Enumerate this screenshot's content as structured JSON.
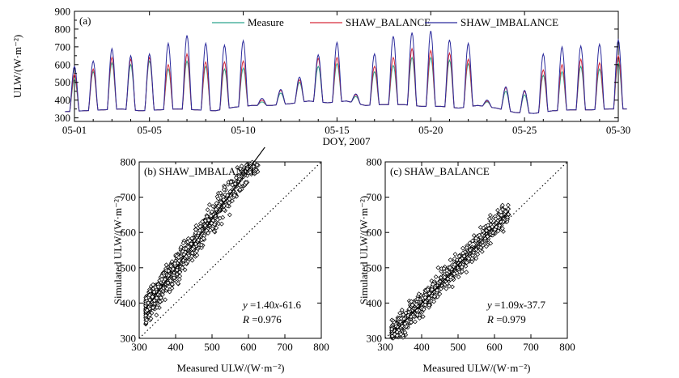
{
  "chart_data": [
    {
      "id": "a",
      "type": "line",
      "panel_label": "(a)",
      "xlabel": "DOY, 2007",
      "ylabel": "ULW/(W·m⁻²)",
      "x_ticklabels": [
        "05-01",
        "05-05",
        "05-10",
        "05-15",
        "05-20",
        "05-25",
        "05-30"
      ],
      "x_tick_days": [
        1,
        5,
        10,
        15,
        20,
        25,
        30
      ],
      "xlim": [
        1,
        30
      ],
      "ylim": [
        280,
        900
      ],
      "y_ticks": [
        300,
        400,
        500,
        600,
        700,
        800,
        900
      ],
      "legend_position": "top-right",
      "daily_data_columns": [
        "day",
        "night_min",
        "Measure_peak",
        "SHAW_BALANCE_peak",
        "SHAW_IMBALANCE_peak"
      ],
      "daily_values": [
        [
          1,
          335,
          520,
          545,
          590
        ],
        [
          2,
          340,
          560,
          575,
          620
        ],
        [
          3,
          345,
          610,
          640,
          690
        ],
        [
          4,
          350,
          600,
          630,
          650
        ],
        [
          5,
          340,
          620,
          640,
          660
        ],
        [
          6,
          345,
          575,
          600,
          720
        ],
        [
          7,
          350,
          620,
          660,
          765
        ],
        [
          8,
          345,
          590,
          615,
          720
        ],
        [
          9,
          340,
          575,
          615,
          710
        ],
        [
          10,
          360,
          580,
          620,
          735
        ],
        [
          11,
          370,
          390,
          400,
          410
        ],
        [
          12,
          370,
          440,
          455,
          460
        ],
        [
          13,
          380,
          500,
          515,
          530
        ],
        [
          14,
          395,
          590,
          635,
          655
        ],
        [
          15,
          385,
          605,
          640,
          725
        ],
        [
          16,
          395,
          420,
          430,
          435
        ],
        [
          17,
          370,
          560,
          590,
          660
        ],
        [
          18,
          375,
          595,
          640,
          760
        ],
        [
          19,
          375,
          640,
          690,
          780
        ],
        [
          20,
          365,
          640,
          680,
          790
        ],
        [
          21,
          365,
          625,
          665,
          740
        ],
        [
          22,
          355,
          605,
          630,
          720
        ],
        [
          23,
          370,
          390,
          395,
          400
        ],
        [
          24,
          355,
          450,
          470,
          475
        ],
        [
          25,
          330,
          430,
          450,
          455
        ],
        [
          26,
          325,
          540,
          570,
          660
        ],
        [
          27,
          340,
          560,
          600,
          700
        ],
        [
          28,
          345,
          590,
          630,
          705
        ],
        [
          29,
          345,
          575,
          610,
          715
        ],
        [
          30,
          350,
          610,
          650,
          740
        ]
      ],
      "series": [
        {
          "name": "Measure",
          "color": "#2ca58d"
        },
        {
          "name": "SHAW_BALANCE",
          "color": "#d62a3a"
        },
        {
          "name": "SHAW_IMBALANCE",
          "color": "#2b2a9c"
        }
      ]
    },
    {
      "id": "b",
      "type": "scatter",
      "panel_label": "(b) SHAW_IMBALANCE",
      "xlabel": "Measured ULW/(W·m⁻²)",
      "ylabel": "Simulated ULW/(W·m⁻²)",
      "xlim": [
        300,
        800
      ],
      "ylim": [
        300,
        800
      ],
      "ticks": [
        300,
        400,
        500,
        600,
        700,
        800
      ],
      "regression": {
        "slope": 1.4,
        "intercept": -61.6
      },
      "equation": {
        "y": "y",
        "eq": " =1.40",
        "x": "x",
        "rest": "-61.6"
      },
      "r_text": {
        "r": "R",
        "value": " =0.976"
      },
      "one_to_one_line": true,
      "marker": "open diamond",
      "approx_points": 900,
      "point_x_range": [
        318,
        645
      ],
      "point_scatter_sd": 20
    },
    {
      "id": "c",
      "type": "scatter",
      "panel_label": "(c) SHAW_BALANCE",
      "xlabel": "Measured ULW/(W·m⁻²)",
      "ylabel": "Simulated ULW/(W·m⁻²)",
      "xlim": [
        300,
        800
      ],
      "ylim": [
        300,
        800
      ],
      "ticks": [
        300,
        400,
        500,
        600,
        700,
        800
      ],
      "regression": {
        "slope": 1.09,
        "intercept": -37.7
      },
      "equation": {
        "y": "y",
        "eq": " =1.09",
        "x": "x",
        "rest": "-37.7"
      },
      "r_text": {
        "r": "R",
        "value": " =0.979"
      },
      "one_to_one_line": true,
      "marker": "open diamond",
      "approx_points": 900,
      "point_x_range": [
        318,
        640
      ],
      "point_scatter_sd": 15
    }
  ]
}
